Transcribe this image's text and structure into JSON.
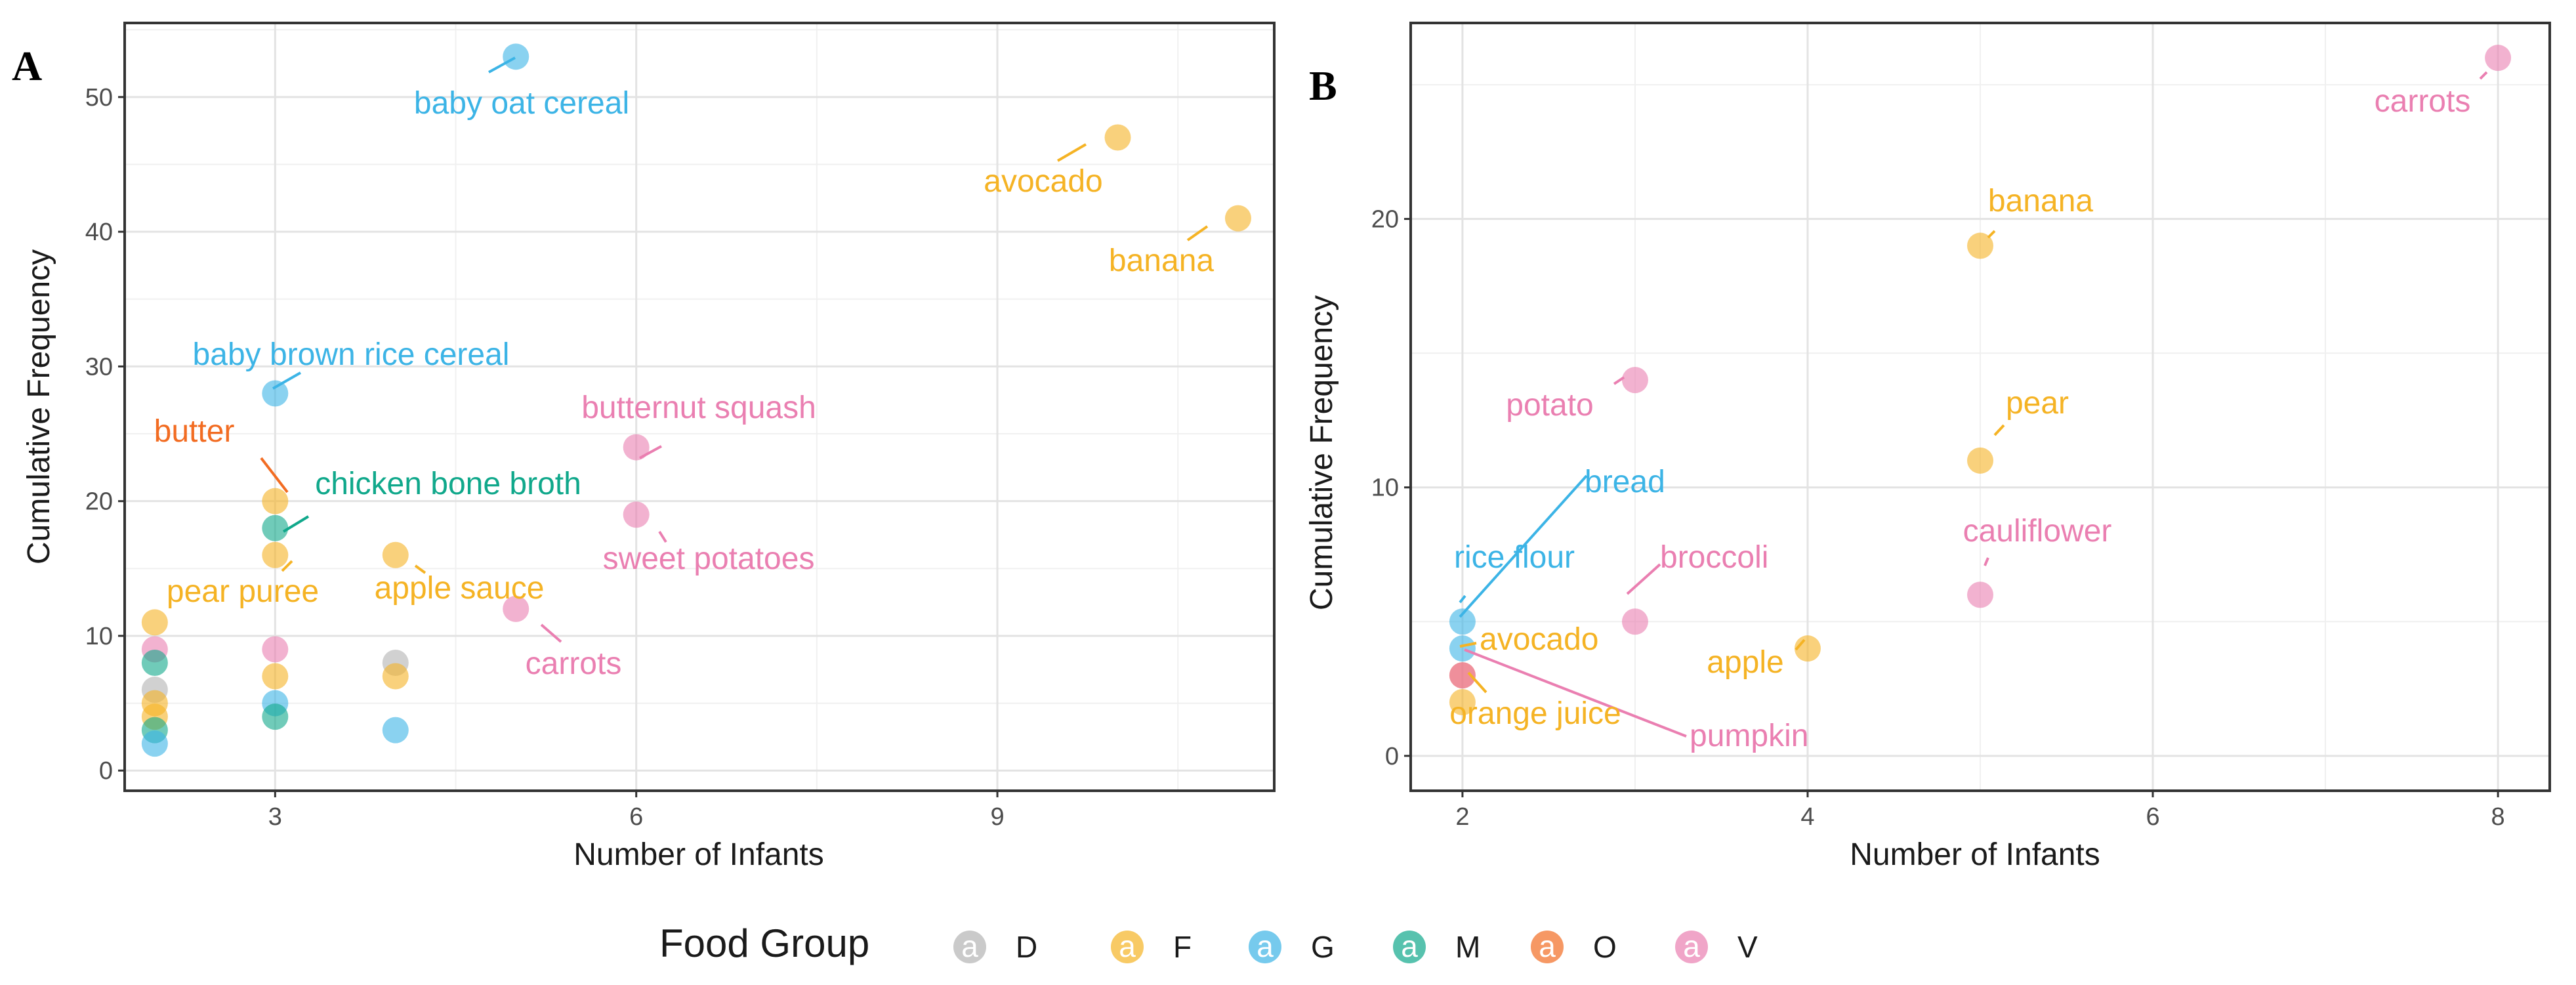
{
  "chart_data": [
    {
      "panel": "A",
      "type": "scatter",
      "xlabel": "Number of Infants",
      "ylabel": "Cumulative Frequency",
      "xlim": [
        1.75,
        11.3
      ],
      "ylim": [
        -1.5,
        55.5
      ],
      "xticks": [
        3,
        6,
        9
      ],
      "yticks": [
        0,
        10,
        20,
        30,
        40,
        50
      ],
      "grid": true,
      "points": [
        {
          "x": 5,
          "y": 53,
          "group": "G",
          "label": "baby oat cereal"
        },
        {
          "x": 10,
          "y": 47,
          "group": "F",
          "label": "avocado"
        },
        {
          "x": 11,
          "y": 41,
          "group": "F",
          "label": "banana"
        },
        {
          "x": 3,
          "y": 28,
          "group": "G",
          "label": "baby brown rice cereal"
        },
        {
          "x": 6,
          "y": 24,
          "group": "V",
          "label": "butternut squash"
        },
        {
          "x": 3,
          "y": 20,
          "group": "F",
          "label": "butter",
          "label_group": "O"
        },
        {
          "x": 3,
          "y": 18,
          "group": "M",
          "label": "chicken bone broth"
        },
        {
          "x": 6,
          "y": 19,
          "group": "V",
          "label": "sweet potatoes"
        },
        {
          "x": 3,
          "y": 16,
          "group": "F",
          "label": "pear puree"
        },
        {
          "x": 4,
          "y": 16,
          "group": "F",
          "label": "apple sauce"
        },
        {
          "x": 5,
          "y": 12,
          "group": "V",
          "label": "carrots"
        },
        {
          "x": 2,
          "y": 11,
          "group": "F"
        },
        {
          "x": 2,
          "y": 9,
          "group": "V"
        },
        {
          "x": 2,
          "y": 8,
          "group": "M"
        },
        {
          "x": 2,
          "y": 6,
          "group": "D"
        },
        {
          "x": 2,
          "y": 5,
          "group": "F"
        },
        {
          "x": 2,
          "y": 4,
          "group": "F"
        },
        {
          "x": 2,
          "y": 3,
          "group": "M"
        },
        {
          "x": 2,
          "y": 2,
          "group": "G"
        },
        {
          "x": 3,
          "y": 9,
          "group": "V"
        },
        {
          "x": 3,
          "y": 7,
          "group": "F"
        },
        {
          "x": 3,
          "y": 5,
          "group": "G"
        },
        {
          "x": 3,
          "y": 4,
          "group": "M"
        },
        {
          "x": 4,
          "y": 8,
          "group": "D"
        },
        {
          "x": 4,
          "y": 7,
          "group": "F"
        },
        {
          "x": 4,
          "y": 3,
          "group": "G"
        }
      ]
    },
    {
      "panel": "B",
      "type": "scatter",
      "xlabel": "Number of Infants",
      "ylabel": "Cumulative Frequency",
      "xlim": [
        1.7,
        8.3
      ],
      "ylim": [
        -1.3,
        27.3
      ],
      "xticks": [
        2,
        4,
        6,
        8
      ],
      "yticks": [
        0,
        10,
        20
      ],
      "grid": true,
      "points": [
        {
          "x": 8,
          "y": 26,
          "group": "V",
          "label": "carrots"
        },
        {
          "x": 5,
          "y": 19,
          "group": "F",
          "label": "banana"
        },
        {
          "x": 3,
          "y": 14,
          "group": "V",
          "label": "potato"
        },
        {
          "x": 5,
          "y": 11,
          "group": "F",
          "label": "pear"
        },
        {
          "x": 5,
          "y": 6,
          "group": "V",
          "label": "cauliflower"
        },
        {
          "x": 2,
          "y": 5,
          "group": "G",
          "label": "rice flour"
        },
        {
          "x": 2,
          "y": 4,
          "group": "G",
          "label": "bread"
        },
        {
          "x": 3,
          "y": 5,
          "group": "V",
          "label": "broccoli"
        },
        {
          "x": 4,
          "y": 4,
          "group": "F",
          "label": "apple"
        },
        {
          "x": 2,
          "y": 3,
          "group": "O",
          "label": "avocado",
          "label_group": "F"
        },
        {
          "x": 2,
          "y": 3,
          "group": "V",
          "label": "pumpkin"
        },
        {
          "x": 2,
          "y": 2,
          "group": "F",
          "label": "orange juice"
        }
      ]
    }
  ],
  "legend": {
    "title": "Food Group",
    "key_glyph": "a",
    "items": [
      {
        "key": "D",
        "color": "#b3b3b3"
      },
      {
        "key": "F",
        "color": "#f5b324"
      },
      {
        "key": "G",
        "color": "#3cb4e6"
      },
      {
        "key": "M",
        "color": "#10a88b"
      },
      {
        "key": "O",
        "color": "#f26c22"
      },
      {
        "key": "V",
        "color": "#ea7fb1"
      }
    ]
  },
  "panel_labels": [
    "A",
    "B"
  ]
}
